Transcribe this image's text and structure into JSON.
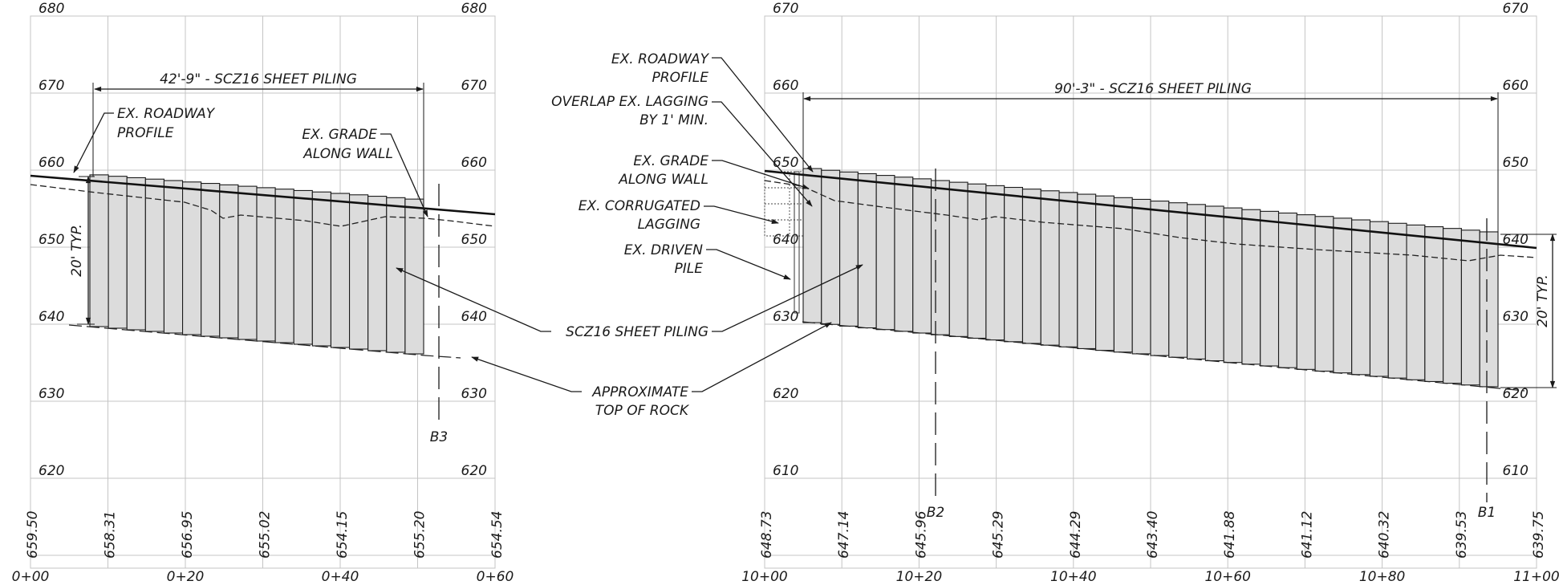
{
  "left_profile": {
    "elev_left": [
      "680",
      "670",
      "660",
      "650",
      "640",
      "630",
      "620"
    ],
    "elev_right": [
      "680",
      "670",
      "660",
      "650",
      "640",
      "630",
      "620"
    ],
    "stations": [
      "0+00",
      "0+20",
      "0+40",
      "0+60"
    ],
    "ground_values": [
      "659.50",
      "658.31",
      "656.95",
      "655.02",
      "654.15",
      "655.20",
      "654.54"
    ],
    "piling_label": "42'-9\" - SCZ16 SHEET PILING",
    "typ_label": "20' TYP.",
    "boring": "B3",
    "callouts": {
      "road_1": "EX. ROADWAY",
      "road_2": "PROFILE",
      "grade_1": "EX. GRADE",
      "grade_2": "ALONG WALL"
    }
  },
  "right_profile": {
    "elev_left": [
      "670",
      "660",
      "650",
      "640",
      "630",
      "620",
      "610"
    ],
    "elev_right": [
      "670",
      "660",
      "650",
      "640",
      "630",
      "620",
      "610"
    ],
    "stations": [
      "10+00",
      "10+20",
      "10+40",
      "10+60",
      "10+80",
      "11+00"
    ],
    "ground_values": [
      "648.73",
      "647.14",
      "645.96",
      "645.29",
      "644.29",
      "643.40",
      "641.88",
      "641.12",
      "640.32",
      "639.53",
      "639.75"
    ],
    "piling_label": "90'-3\" - SCZ16 SHEET PILING",
    "typ_label": "20' TYP.",
    "borings": [
      "B2",
      "B1"
    ]
  },
  "callouts": {
    "roadway_1": "EX. ROADWAY",
    "roadway_2": "PROFILE",
    "overlap_1": "OVERLAP EX. LAGGING",
    "overlap_2": "BY 1' MIN.",
    "grade_1": "EX. GRADE",
    "grade_2": "ALONG WALL",
    "lagging_1": "EX. CORRUGATED",
    "lagging_2": "LAGGING",
    "pile_1": "EX. DRIVEN",
    "pile_2": "PILE",
    "sheet_piling": "SCZ16 SHEET PILING",
    "rock_1": "APPROXIMATE",
    "rock_2": "TOP OF ROCK"
  }
}
